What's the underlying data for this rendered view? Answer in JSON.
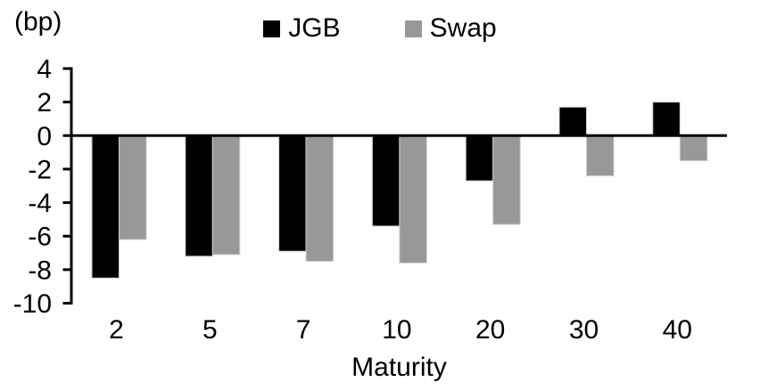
{
  "chart_data": {
    "type": "bar",
    "title": "",
    "unit_label": "(bp)",
    "xlabel": "Maturity",
    "ylabel": "",
    "categories": [
      "2",
      "5",
      "7",
      "10",
      "20",
      "30",
      "40"
    ],
    "series": [
      {
        "name": "JGB",
        "color": "#000000",
        "values": [
          -8.5,
          -7.2,
          -6.9,
          -5.4,
          -2.7,
          1.7,
          2.0
        ]
      },
      {
        "name": "Swap",
        "color": "#989898",
        "values": [
          -6.2,
          -7.1,
          -7.5,
          -7.6,
          -5.3,
          -2.4,
          -1.5
        ]
      }
    ],
    "yticks": [
      4,
      2,
      0,
      -2,
      -4,
      -6,
      -8,
      -10
    ],
    "ylim": [
      -10,
      4
    ],
    "grid": false,
    "legend_position": "top-center",
    "axis_color": "#000000",
    "background": "#ffffff"
  }
}
